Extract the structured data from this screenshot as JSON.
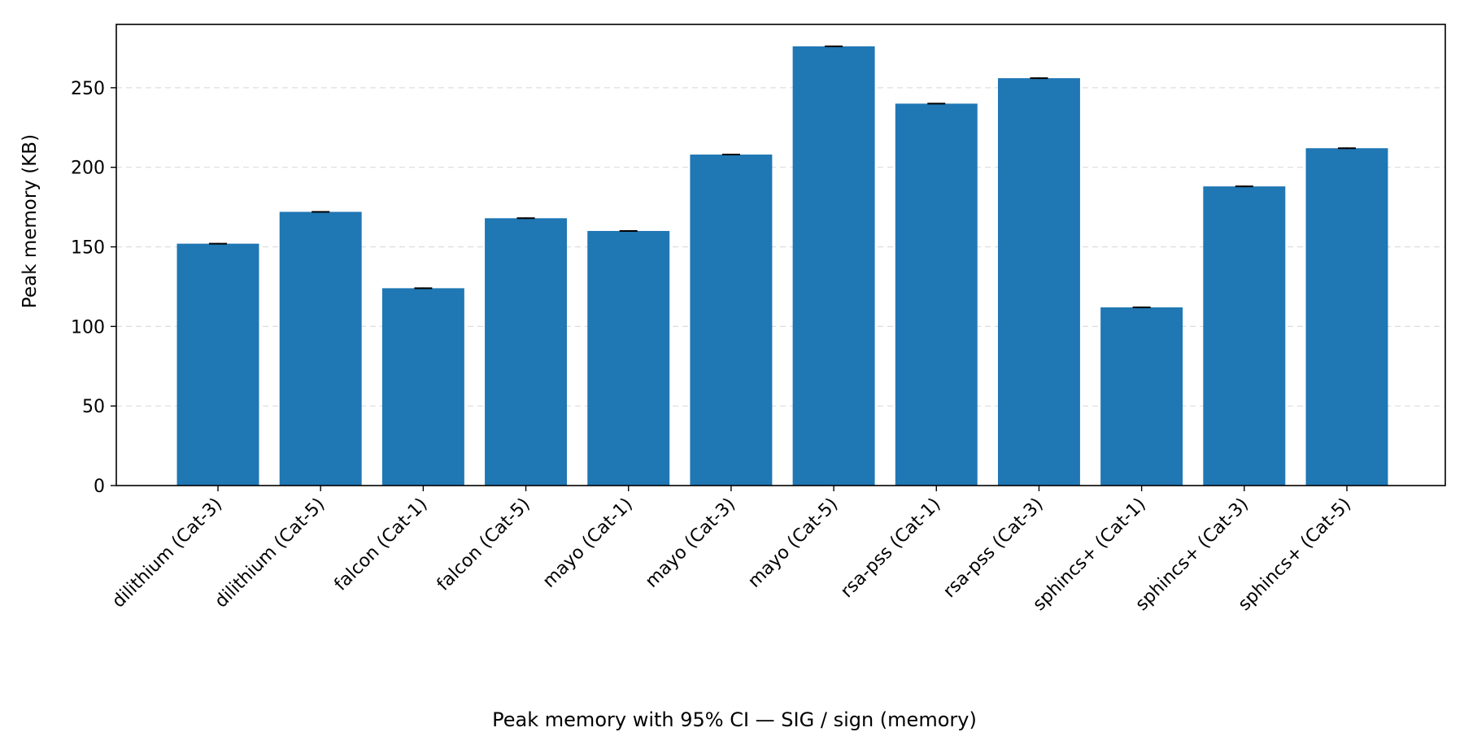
{
  "chart_data": {
    "type": "bar",
    "ylabel": "Peak memory (KB)",
    "xlabel": "",
    "caption": "Peak memory with 95% CI — SIG / sign (memory)",
    "categories": [
      "dilithium (Cat-3)",
      "dilithium (Cat-5)",
      "falcon (Cat-1)",
      "falcon (Cat-5)",
      "mayo (Cat-1)",
      "mayo (Cat-3)",
      "mayo (Cat-5)",
      "rsa-pss (Cat-1)",
      "rsa-pss (Cat-3)",
      "sphincs+ (Cat-1)",
      "sphincs+ (Cat-3)",
      "sphincs+ (Cat-5)"
    ],
    "values": [
      152,
      172,
      124,
      168,
      160,
      208,
      276,
      240,
      256,
      112,
      188,
      212
    ],
    "ci": [
      0.5,
      0.5,
      0.5,
      0.5,
      0.5,
      0.5,
      0.5,
      0.5,
      0.5,
      0.5,
      0.5,
      0.5
    ],
    "yticks": [
      0,
      50,
      100,
      150,
      200,
      250
    ],
    "ylim": [
      0,
      289.8
    ],
    "grid": "y, dashed",
    "bar_color": "#1f77b4",
    "grid_color": "#dddddd"
  }
}
